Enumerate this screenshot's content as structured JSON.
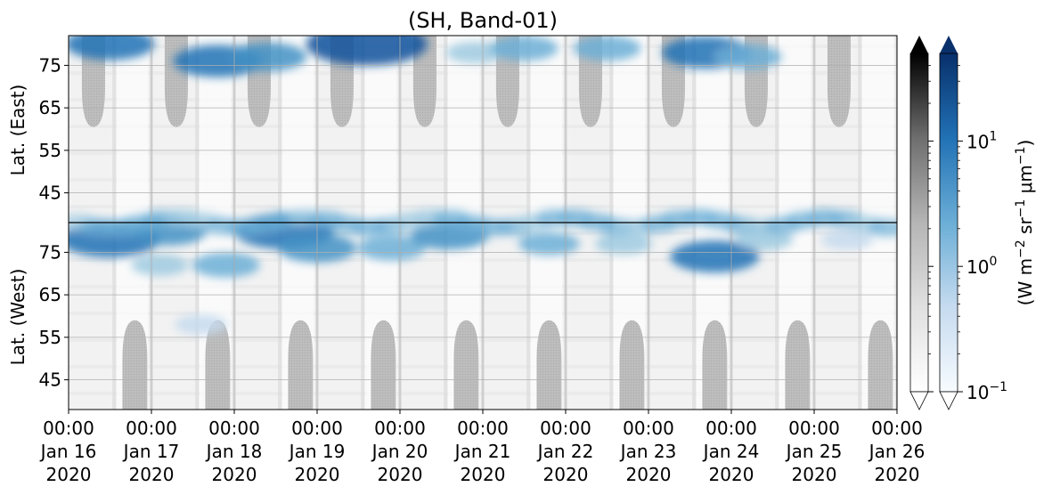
{
  "chart_data": {
    "type": "heatmap",
    "title": "(SH, Band-01)",
    "xlabel": "",
    "ylabel_east": "Lat. (East)",
    "ylabel_west": "Lat. (West)",
    "xticks": [
      {
        "time": "00:00",
        "date": "Jan 16",
        "year": "2020"
      },
      {
        "time": "00:00",
        "date": "Jan 17",
        "year": "2020"
      },
      {
        "time": "00:00",
        "date": "Jan 18",
        "year": "2020"
      },
      {
        "time": "00:00",
        "date": "Jan 19",
        "year": "2020"
      },
      {
        "time": "00:00",
        "date": "Jan 20",
        "year": "2020"
      },
      {
        "time": "00:00",
        "date": "Jan 21",
        "year": "2020"
      },
      {
        "time": "00:00",
        "date": "Jan 22",
        "year": "2020"
      },
      {
        "time": "00:00",
        "date": "Jan 23",
        "year": "2020"
      },
      {
        "time": "00:00",
        "date": "Jan 24",
        "year": "2020"
      },
      {
        "time": "00:00",
        "date": "Jan 25",
        "year": "2020"
      },
      {
        "time": "00:00",
        "date": "Jan 26",
        "year": "2020"
      }
    ],
    "xlim": [
      "2020-01-16 00:00",
      "2020-01-26 00:00"
    ],
    "yticks_east": [
      "45",
      "55",
      "65",
      "75"
    ],
    "yticks_west": [
      "75",
      "65",
      "55",
      "45"
    ],
    "east_lat_range": [
      38,
      82
    ],
    "west_lat_range": [
      82,
      38
    ],
    "grid": true,
    "colorbar": {
      "label_parts": [
        "(W m",
        "−2",
        " sr",
        "−1",
        " μm",
        "−1",
        ")"
      ],
      "scale": "log",
      "ticks": [
        {
          "base": "10",
          "exp": "1",
          "value": 10
        },
        {
          "base": "10",
          "exp": "0",
          "value": 1
        },
        {
          "base": "10",
          "exp": "−1",
          "value": 0.1
        }
      ],
      "range": [
        0.1,
        50
      ],
      "grey_cmap": "Greys",
      "blue_cmap": "Blues",
      "extend": "both"
    },
    "no_data_color": "#bdbdbd",
    "background_color": "#f2f2f2",
    "day_night_regions": {
      "east_gaps_days": [
        0.3,
        1.3,
        2.3,
        3.3,
        4.3,
        5.3,
        6.3,
        7.3,
        8.3,
        9.3
      ],
      "west_gaps_days": [
        0.8,
        1.8,
        2.8,
        3.8,
        4.8,
        5.8,
        6.8,
        7.8,
        8.8,
        9.8
      ]
    },
    "emission_blobs": [
      {
        "day": 0.5,
        "lat": 80.0,
        "side": "east",
        "intensity": 2.5
      },
      {
        "day": 0.5,
        "lat": 78.0,
        "side": "west",
        "intensity": 3.0
      },
      {
        "day": 1.2,
        "lat": 80.0,
        "side": "west",
        "intensity": 2.0
      },
      {
        "day": 1.1,
        "lat": 72.0,
        "side": "west",
        "intensity": 1.0
      },
      {
        "day": 1.8,
        "lat": 76.0,
        "side": "east",
        "intensity": 2.5
      },
      {
        "day": 1.9,
        "lat": 72.0,
        "side": "west",
        "intensity": 1.5
      },
      {
        "day": 1.6,
        "lat": 58.0,
        "side": "west",
        "intensity": 0.8
      },
      {
        "day": 2.4,
        "lat": 77.0,
        "side": "east",
        "intensity": 2.0
      },
      {
        "day": 2.6,
        "lat": 80.0,
        "side": "west",
        "intensity": 3.0
      },
      {
        "day": 3.0,
        "lat": 76.0,
        "side": "west",
        "intensity": 2.0
      },
      {
        "day": 3.6,
        "lat": 80.0,
        "side": "east",
        "intensity": 4.0
      },
      {
        "day": 3.9,
        "lat": 76.0,
        "side": "west",
        "intensity": 1.5
      },
      {
        "day": 4.6,
        "lat": 79.0,
        "side": "west",
        "intensity": 2.0
      },
      {
        "day": 4.9,
        "lat": 78.0,
        "side": "east",
        "intensity": 1.0
      },
      {
        "day": 5.5,
        "lat": 79.0,
        "side": "east",
        "intensity": 1.5
      },
      {
        "day": 5.8,
        "lat": 77.0,
        "side": "west",
        "intensity": 1.2
      },
      {
        "day": 6.5,
        "lat": 79.0,
        "side": "east",
        "intensity": 1.5
      },
      {
        "day": 6.7,
        "lat": 77.0,
        "side": "west",
        "intensity": 1.0
      },
      {
        "day": 7.7,
        "lat": 78.0,
        "side": "east",
        "intensity": 2.5
      },
      {
        "day": 7.8,
        "lat": 74.0,
        "side": "west",
        "intensity": 2.5
      },
      {
        "day": 8.2,
        "lat": 77.0,
        "side": "east",
        "intensity": 1.5
      },
      {
        "day": 8.4,
        "lat": 78.0,
        "side": "west",
        "intensity": 1.0
      },
      {
        "day": 9.4,
        "lat": 78.0,
        "side": "west",
        "intensity": 0.8
      }
    ]
  }
}
